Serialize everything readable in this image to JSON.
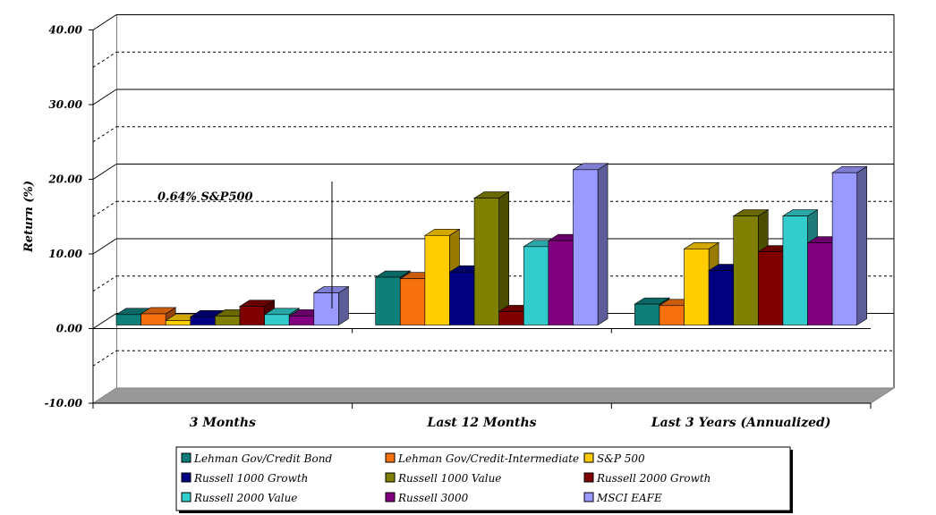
{
  "chart_data": {
    "type": "bar",
    "title": "",
    "xlabel": "",
    "ylabel": "Return (%)",
    "ylim": [
      -10,
      40
    ],
    "yticks": [
      "-10.00",
      "0.00",
      "10.00",
      "20.00",
      "30.00",
      "40.00"
    ],
    "categories": [
      "3 Months",
      "Last 12 Months",
      "Last 3 Years (Annualized)"
    ],
    "series": [
      {
        "name": "Lehman Gov/Credit Bond",
        "color": "#0f7f7a",
        "values": [
          1.4,
          6.4,
          2.8
        ]
      },
      {
        "name": "Lehman Gov/Credit-Intermediate",
        "color": "#f7700e",
        "values": [
          1.5,
          6.2,
          2.6
        ]
      },
      {
        "name": "S&P 500",
        "color": "#ffcc00",
        "values": [
          0.6,
          12.0,
          10.2
        ]
      },
      {
        "name": "Russell 1000 Growth",
        "color": "#000080",
        "values": [
          1.1,
          7.1,
          7.3
        ]
      },
      {
        "name": "Russell 1000 Value",
        "color": "#808000",
        "values": [
          1.2,
          17.0,
          14.6
        ]
      },
      {
        "name": "Russell 2000 Growth",
        "color": "#800000",
        "values": [
          2.5,
          1.8,
          9.8
        ]
      },
      {
        "name": "Russell 2000 Value",
        "color": "#33cccc",
        "values": [
          1.4,
          10.5,
          14.6
        ]
      },
      {
        "name": "Russell 3000",
        "color": "#800080",
        "values": [
          1.2,
          11.3,
          11.0
        ]
      },
      {
        "name": "MSCI EAFE",
        "color": "#9999ff",
        "values": [
          4.3,
          20.8,
          20.4
        ]
      }
    ],
    "annotation": "0.64% S&P500",
    "grid": true,
    "legend_position": "bottom"
  }
}
